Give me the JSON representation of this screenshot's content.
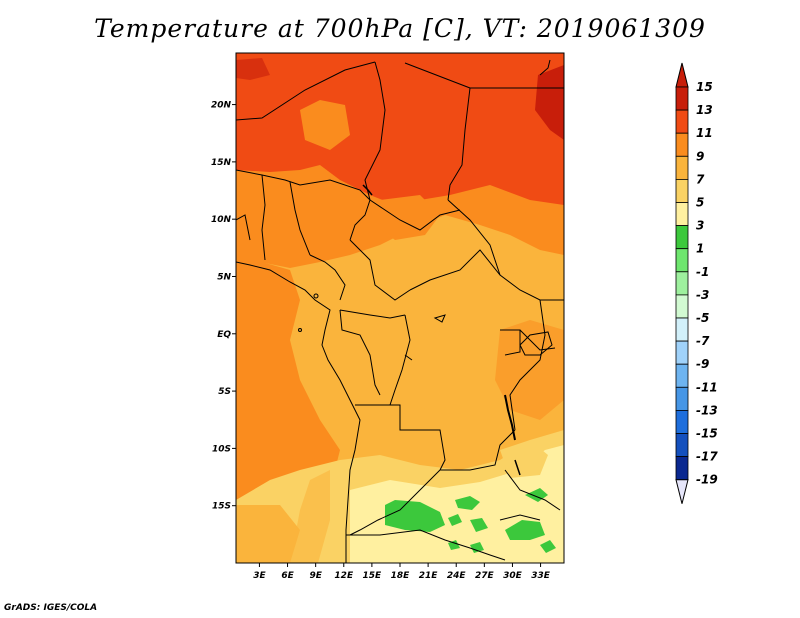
{
  "title": "Temperature at 700hPa [C], VT: 2019061309",
  "credit": "GrADS: IGES/COLA",
  "map": {
    "lat_ticks": [
      {
        "label": "20N",
        "lat": 20
      },
      {
        "label": "15N",
        "lat": 15
      },
      {
        "label": "10N",
        "lat": 10
      },
      {
        "label": "5N",
        "lat": 5
      },
      {
        "label": "EQ",
        "lat": 0
      },
      {
        "label": "5S",
        "lat": -5
      },
      {
        "label": "10S",
        "lat": -10
      },
      {
        "label": "15S",
        "lat": -15
      }
    ],
    "lon_ticks": [
      {
        "label": "3E",
        "lon": 3
      },
      {
        "label": "6E",
        "lon": 6
      },
      {
        "label": "9E",
        "lon": 9
      },
      {
        "label": "12E",
        "lon": 12
      },
      {
        "label": "15E",
        "lon": 15
      },
      {
        "label": "18E",
        "lon": 18
      },
      {
        "label": "21E",
        "lon": 21
      },
      {
        "label": "24E",
        "lon": 24
      },
      {
        "label": "27E",
        "lon": 27
      },
      {
        "label": "30E",
        "lon": 30
      },
      {
        "label": "33E",
        "lon": 33
      }
    ],
    "lon_range": [
      0.5,
      35.5
    ],
    "lat_range": [
      -20,
      24.5
    ]
  },
  "colorbar": {
    "levels": [
      "15",
      "13",
      "11",
      "9",
      "7",
      "5",
      "3",
      "1",
      "-1",
      "-3",
      "-5",
      "-7",
      "-9",
      "-11",
      "-13",
      "-15",
      "-17",
      "-19"
    ],
    "colors": [
      "#c81e0a",
      "#f04b14",
      "#fa8c1e",
      "#fab43c",
      "#fad264",
      "#fff0a0",
      "#3cc83c",
      "#6ee66e",
      "#9ef09e",
      "#d2fad2",
      "#d2f0fa",
      "#a0d2fa",
      "#6eb4f0",
      "#4696e6",
      "#1e6edc",
      "#1450be",
      "#0a2890"
    ],
    "under_color": "#e6e6fa",
    "over_color": "#c81e0a"
  }
}
